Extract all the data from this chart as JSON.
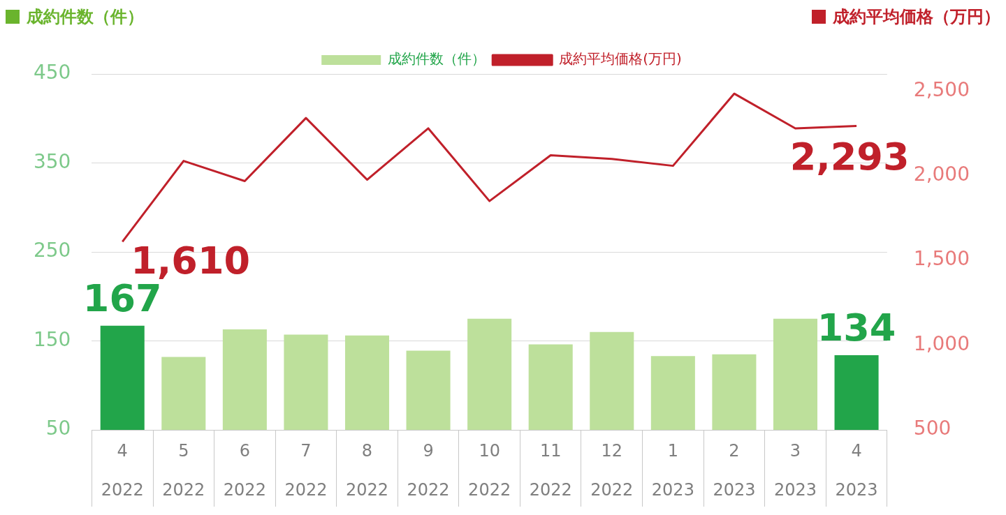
{
  "chart_data": {
    "type": "bar",
    "ylabel": "成約件数（件）",
    "y2label": "成約平均価格（万円）",
    "categories": [
      "4\n2022",
      "5\n2022",
      "6\n2022",
      "7\n2022",
      "8\n2022",
      "9\n2022",
      "10\n2022",
      "11\n2022",
      "12\n2022",
      "1\n2023",
      "2\n2023",
      "3\n2023",
      "4\n2023"
    ],
    "series": [
      {
        "name": "成約件数（件）",
        "color": "#bde09b",
        "colors": [
          "#22a54a",
          "#bde09b",
          "#bde09b",
          "#bde09b",
          "#bde09b",
          "#bde09b",
          "#bde09b",
          "#bde09b",
          "#bde09b",
          "#bde09b",
          "#bde09b",
          "#bde09b",
          "#22a54a"
        ],
        "values": [
          167,
          132,
          163,
          157,
          156,
          139,
          175,
          146,
          160,
          133,
          135,
          175,
          134
        ],
        "value_labels": [
          "167",
          null,
          null,
          null,
          null,
          null,
          null,
          null,
          null,
          null,
          null,
          null,
          "134"
        ]
      },
      {
        "name": "成約平均価格(万円)",
        "type": "line",
        "axis": "y2",
        "color": "#c0202a",
        "values": [
          1610,
          2087,
          1968,
          2340,
          1976,
          2279,
          1850,
          2120,
          2099,
          2058,
          2484,
          2279,
          2293
        ],
        "value_labels": [
          "1,610",
          null,
          null,
          null,
          null,
          null,
          null,
          null,
          null,
          null,
          null,
          null,
          "2,293"
        ]
      }
    ],
    "ylim": [
      50,
      450
    ],
    "yticks": [
      50,
      150,
      250,
      350,
      450
    ],
    "y2lim": [
      500,
      2600
    ],
    "y2ticks": [
      500,
      {
        "value": 1000,
        "label": "1,000"
      },
      {
        "value": 1500,
        "label": "1,500"
      },
      {
        "value": 2000,
        "label": "2,000"
      },
      {
        "value": 2500,
        "label": "2,500"
      }
    ],
    "grid": "y",
    "legend": "top",
    "marker": "none"
  }
}
